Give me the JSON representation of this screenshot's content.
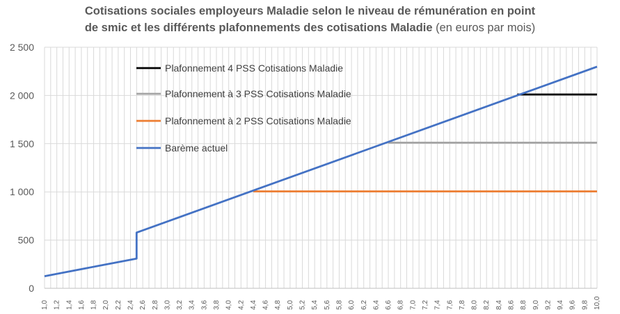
{
  "chart_data": {
    "type": "line",
    "title_bold_line1": "Cotisations sociales  employeurs Maladie selon le niveau de rémunération en point",
    "title_bold_line2": "de smic et les différents plafonnements des cotisations Maladie",
    "title_suffix": " (en euros par mois)",
    "xlabel": "",
    "ylabel": "",
    "ylim": [
      0,
      2500
    ],
    "yticks": [
      "0",
      "500",
      "1 000",
      "1 500",
      "2 000",
      "2 500"
    ],
    "ytick_values": [
      0,
      500,
      1000,
      1500,
      2000,
      2500
    ],
    "xlim": [
      1.0,
      10.0
    ],
    "x_start": 1.0,
    "x_step": 0.1,
    "x_count": 91,
    "x_label_every": 0.2,
    "grid": true,
    "legend_position": "top-left",
    "series": [
      {
        "name": "Plafonnement 4 PSS Cotisations Maladie",
        "color": "#000000",
        "points": [
          [
            8.7,
            2010
          ],
          [
            10.0,
            2010
          ]
        ]
      },
      {
        "name": "Plafonnement à 3 PSS Cotisations Maladie",
        "color": "#a5a5a5",
        "points": [
          [
            6.6,
            1510
          ],
          [
            10.0,
            1510
          ]
        ]
      },
      {
        "name": "Plafonnement à 2 PSS Cotisations Maladie",
        "color": "#ed7d31",
        "points": [
          [
            4.4,
            1005
          ],
          [
            10.0,
            1005
          ]
        ]
      },
      {
        "name": "Barème actuel",
        "color": "#4472c4",
        "points": [
          [
            1.0,
            125
          ],
          [
            2.5,
            308
          ],
          [
            2.5,
            578
          ],
          [
            10.0,
            2298
          ]
        ]
      }
    ]
  }
}
